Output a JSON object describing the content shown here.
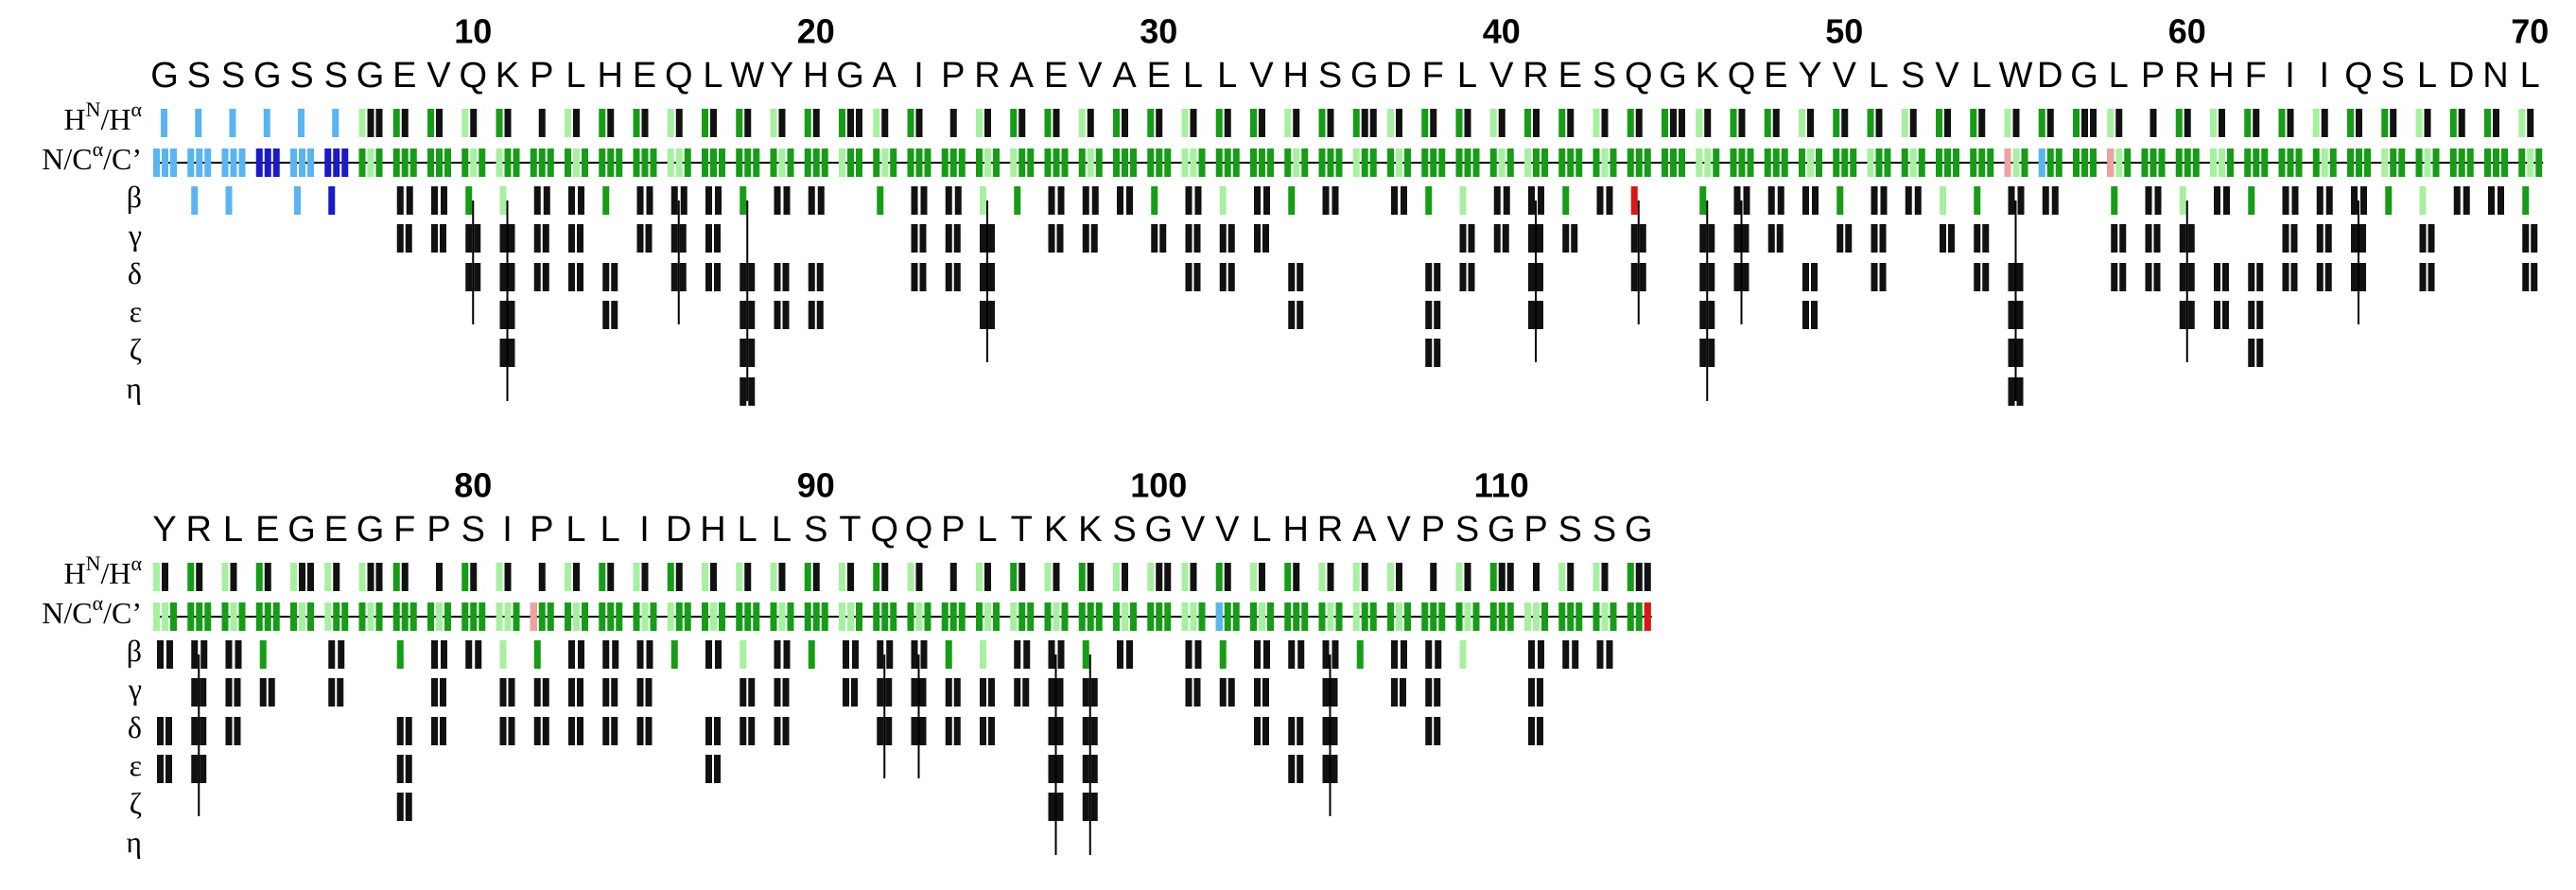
{
  "tracks": [
    {
      "label": [
        {
          "text": "H"
        },
        {
          "text": "N",
          "sup": true
        },
        {
          "text": "/H"
        },
        {
          "text": "α",
          "sup": true
        }
      ]
    },
    {
      "label": [
        {
          "text": "N/C"
        },
        {
          "text": "α",
          "sup": true
        },
        {
          "text": "/C’"
        }
      ]
    },
    {
      "label": [
        {
          "text": "β"
        }
      ]
    },
    {
      "label": [
        {
          "text": "γ"
        }
      ]
    },
    {
      "label": [
        {
          "text": "δ"
        }
      ]
    },
    {
      "label": [
        {
          "text": "ε"
        }
      ]
    },
    {
      "label": [
        {
          "text": "ζ"
        }
      ]
    },
    {
      "label": [
        {
          "text": "η"
        }
      ]
    }
  ],
  "blocks": [
    {
      "numbers": [
        10,
        20,
        30,
        40,
        50,
        60,
        70
      ],
      "residues": [
        "G",
        "S",
        "S",
        "G",
        "S",
        "S",
        "G",
        "E",
        "V",
        "Q",
        "K",
        "P",
        "L",
        "H",
        "E",
        "Q",
        "L",
        "W",
        "Y",
        "H",
        "G",
        "A",
        "I",
        "P",
        "R",
        "A",
        "E",
        "V",
        "A",
        "E",
        "L",
        "L",
        "V",
        "H",
        "S",
        "G",
        "D",
        "F",
        "L",
        "V",
        "R",
        "E",
        "S",
        "Q",
        "G",
        "K",
        "Q",
        "E",
        "Y",
        "V",
        "L",
        "S",
        "V",
        "L",
        "W",
        "D",
        "G",
        "L",
        "P",
        "R",
        "H",
        "F",
        "I",
        "I",
        "Q",
        "S",
        "L",
        "D",
        "N",
        "L"
      ]
    },
    {
      "numbers": [
        80,
        90,
        100,
        110
      ],
      "residues": [
        "Y",
        "R",
        "L",
        "E",
        "G",
        "E",
        "G",
        "F",
        "P",
        "S",
        "I",
        "P",
        "L",
        "L",
        "I",
        "D",
        "H",
        "L",
        "L",
        "S",
        "T",
        "Q",
        "Q",
        "P",
        "L",
        "T",
        "K",
        "K",
        "S",
        "G",
        "V",
        "V",
        "L",
        "H",
        "R",
        "A",
        "V",
        "P",
        "S",
        "G",
        "P",
        "S",
        "S",
        "G"
      ]
    }
  ]
}
